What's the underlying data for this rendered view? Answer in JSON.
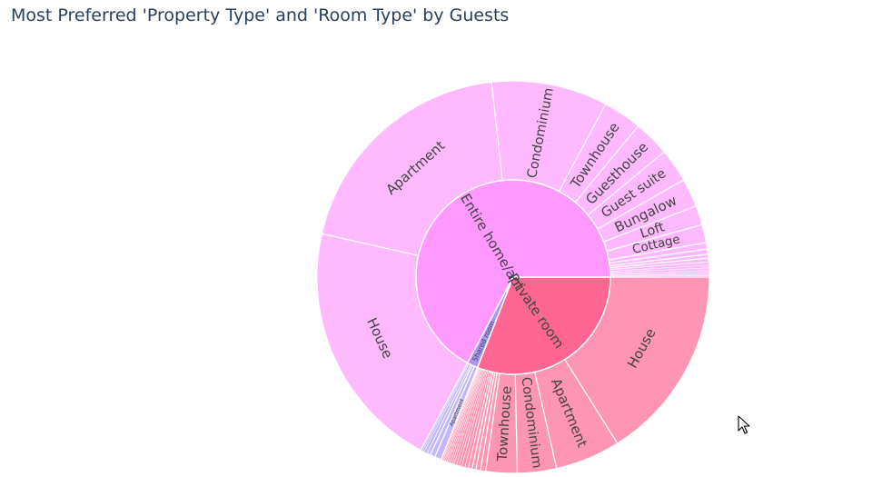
{
  "chart_data": {
    "type": "sunburst",
    "title": "Most Preferred 'Property Type' and 'Room Type' by Guests",
    "center_start_angle_deg": 0,
    "colors": {
      "Entire home/apt": {
        "inner": "#ff99ff",
        "outer": "#ffbaff"
      },
      "Private room": {
        "inner": "#ff6692",
        "outer": "#ff95b5"
      },
      "Shared room": {
        "inner": "#a895f6",
        "outer": "#c3b8fb"
      }
    },
    "room_types": [
      {
        "name": "Private room",
        "value": 31,
        "children": [
          {
            "name": "House",
            "value": 15
          },
          {
            "name": "Apartment",
            "value": 5
          },
          {
            "name": "Condominium",
            "value": 3
          },
          {
            "name": "Townhouse",
            "value": 2.4
          },
          {
            "name": "",
            "value": 0.4
          },
          {
            "name": "",
            "value": 0.35
          },
          {
            "name": "",
            "value": 0.3
          },
          {
            "name": "",
            "value": 0.3
          },
          {
            "name": "",
            "value": 0.25
          },
          {
            "name": "",
            "value": 0.25
          },
          {
            "name": "",
            "value": 0.2
          },
          {
            "name": "",
            "value": 0.2
          },
          {
            "name": "",
            "value": 0.2
          },
          {
            "name": "",
            "value": 0.15
          },
          {
            "name": "",
            "value": 0.15
          },
          {
            "name": "",
            "value": 0.15
          },
          {
            "name": "",
            "value": 0.12
          },
          {
            "name": "",
            "value": 0.12
          },
          {
            "name": "",
            "value": 0.1
          },
          {
            "name": "",
            "value": 0.1
          },
          {
            "name": "",
            "value": 0.08
          },
          {
            "name": "",
            "value": 0.08
          }
        ]
      },
      {
        "name": "Shared room",
        "value": 1.8,
        "children": [
          {
            "name": "Apartment",
            "value": 0.55
          },
          {
            "name": "",
            "value": 0.4
          },
          {
            "name": "",
            "value": 0.3
          },
          {
            "name": "",
            "value": 0.25
          },
          {
            "name": "",
            "value": 0.15
          },
          {
            "name": "",
            "value": 0.15
          }
        ]
      },
      {
        "name": "Entire home/apt",
        "value": 67.2,
        "children": [
          {
            "name": "House",
            "value": 19.5
          },
          {
            "name": "Apartment",
            "value": 18.5
          },
          {
            "name": "Condominium",
            "value": 9
          },
          {
            "name": "Townhouse",
            "value": 3
          },
          {
            "name": "Guesthouse",
            "value": 2.8
          },
          {
            "name": "Guest suite",
            "value": 2.6
          },
          {
            "name": "Bungalow",
            "value": 2.2
          },
          {
            "name": "Loft",
            "value": 1.5
          },
          {
            "name": "Cottage",
            "value": 1.4
          },
          {
            "name": "",
            "value": 0.5
          },
          {
            "name": "",
            "value": 0.4
          },
          {
            "name": "",
            "value": 0.3
          },
          {
            "name": "",
            "value": 0.3
          },
          {
            "name": "",
            "value": 0.25
          },
          {
            "name": "",
            "value": 0.2
          },
          {
            "name": "",
            "value": 0.2
          },
          {
            "name": "",
            "value": 0.15
          },
          {
            "name": "",
            "value": 0.15
          },
          {
            "name": "",
            "value": 0.1
          },
          {
            "name": "",
            "value": 0.1
          }
        ]
      }
    ]
  },
  "icons": {
    "cursor": "mouse-pointer-icon"
  }
}
